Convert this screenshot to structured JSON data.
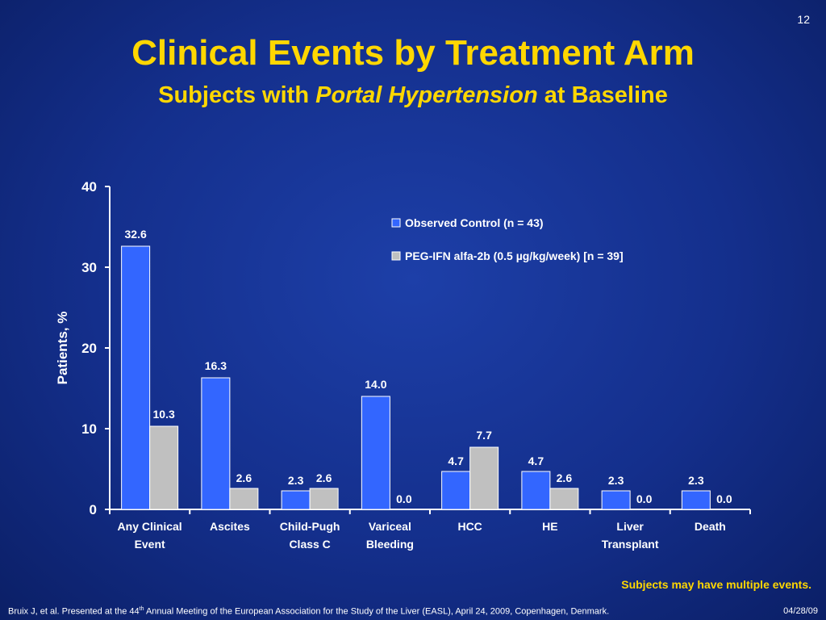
{
  "slide_number": "12",
  "title": "Clinical Events by Treatment Arm",
  "subtitle": {
    "prefix": "Subjects with ",
    "emphasis": "Portal Hypertension",
    "suffix": " at Baseline"
  },
  "footnote": "Subjects may have multiple events.",
  "citation": {
    "pre": "Bruix J, et al. Presented at the 44",
    "sup": "th",
    "post": " Annual Meeting of the European Association for the Study of the Liver (EASL), April 24, 2009, Copenhagen, Denmark.",
    "date": "04/28/09"
  },
  "colors": {
    "control": "#3366ff",
    "pegifn": "#c0c0c0",
    "title": "#ffd700"
  },
  "chart_data": {
    "type": "bar",
    "title": "",
    "xlabel": "",
    "ylabel": "Patients, %",
    "ylim": [
      0,
      40
    ],
    "yticks": [
      0,
      10,
      20,
      30,
      40
    ],
    "legend_position": "top-right",
    "categories": [
      [
        "Any Clinical",
        "Event"
      ],
      [
        "Ascites"
      ],
      [
        "Child-Pugh",
        "Class C"
      ],
      [
        "Variceal",
        "Bleeding"
      ],
      [
        "HCC"
      ],
      [
        "HE"
      ],
      [
        "Liver",
        "Transplant"
      ],
      [
        "Death"
      ]
    ],
    "series": [
      {
        "name": "Observed Control (n = 43)",
        "values": [
          32.6,
          16.3,
          2.3,
          14.0,
          4.7,
          4.7,
          2.3,
          2.3
        ],
        "labels": [
          "32.6",
          "16.3",
          "2.3",
          "14.0",
          "4.7",
          "4.7",
          "2.3",
          "2.3"
        ]
      },
      {
        "name": "PEG-IFN alfa-2b (0.5 µg/kg/week) [n = 39]",
        "values": [
          10.3,
          2.6,
          2.6,
          0.0,
          7.7,
          2.6,
          0.0,
          0.0
        ],
        "labels": [
          "10.3",
          "2.6",
          "2.6",
          "0.0",
          "7.7",
          "2.6",
          "0.0",
          "0.0"
        ]
      }
    ]
  }
}
